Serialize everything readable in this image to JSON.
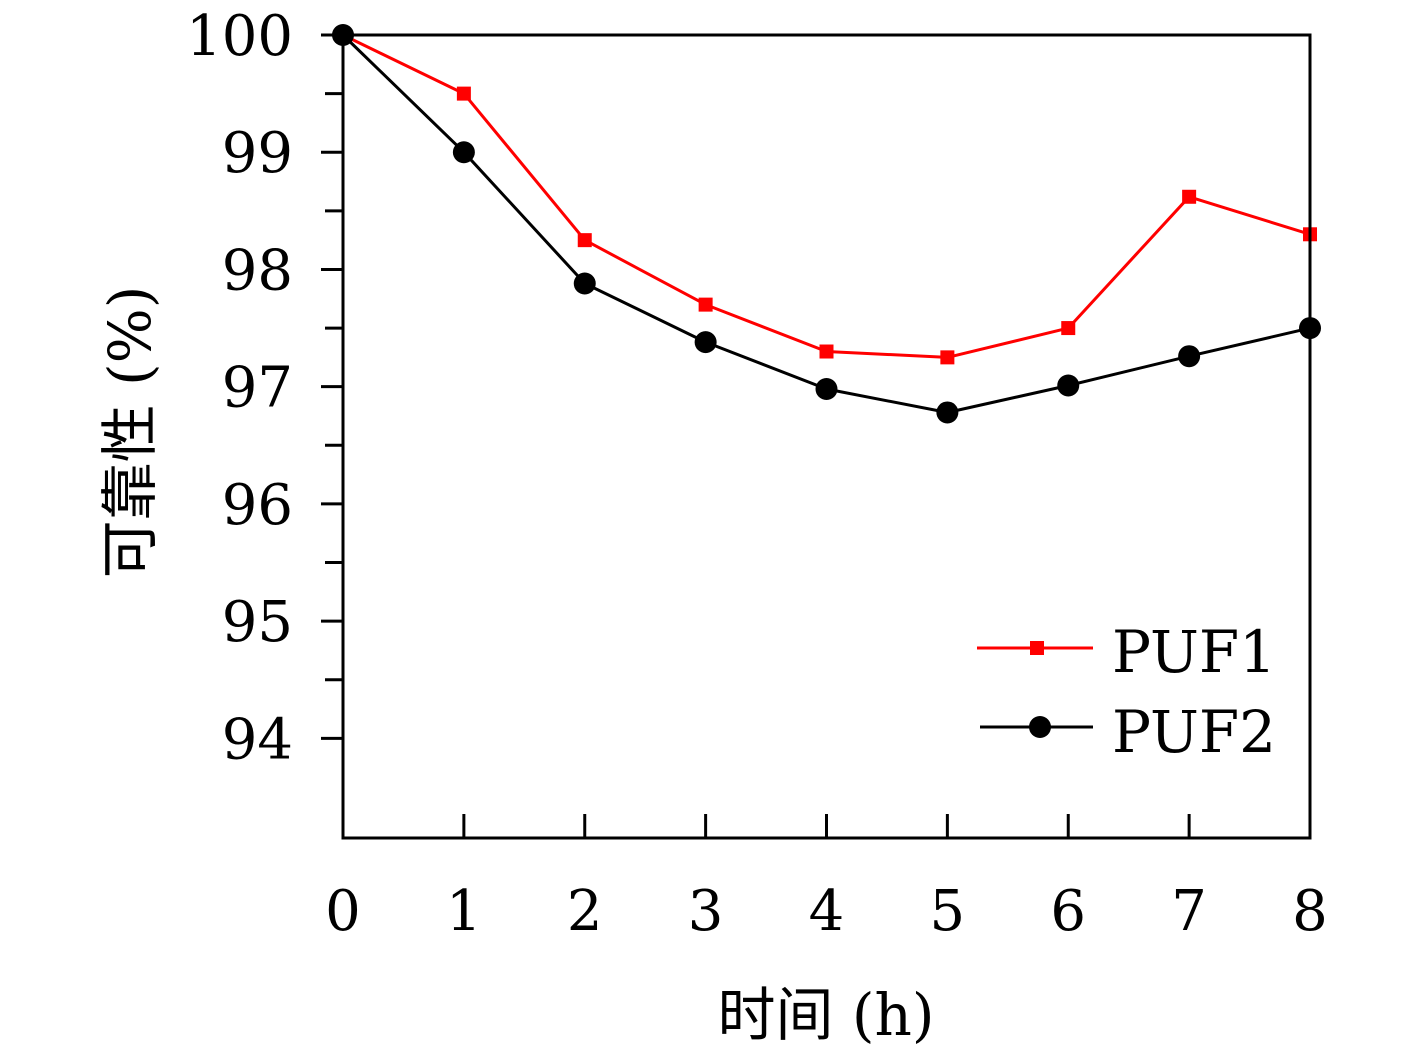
{
  "chart_data": {
    "type": "line",
    "xlabel": "时间 (h)",
    "ylabel": "可靠性 (%)",
    "x": [
      0,
      1,
      2,
      3,
      4,
      5,
      6,
      7,
      8
    ],
    "xlim": [
      0,
      8
    ],
    "ylim": [
      93.15,
      100
    ],
    "x_ticks": [
      "0",
      "1",
      "2",
      "3",
      "4",
      "5",
      "6",
      "7",
      "8"
    ],
    "y_ticks": [
      "94",
      "95",
      "96",
      "97",
      "98",
      "99",
      "100"
    ],
    "y_tick_values": [
      94,
      95,
      96,
      97,
      98,
      99,
      100
    ],
    "y_minor_ticks": [
      94.5,
      95.5,
      96.5,
      97.5,
      98.5,
      99.5
    ],
    "grid": false,
    "legend_position": "bottom-right",
    "series": [
      {
        "name": "PUF1",
        "color": "#ff0000",
        "marker": "square",
        "values": [
          100,
          99.5,
          98.25,
          97.7,
          97.3,
          97.25,
          97.5,
          98.62,
          98.3
        ]
      },
      {
        "name": "PUF2",
        "color": "#000000",
        "marker": "circle",
        "values": [
          100,
          99.0,
          97.88,
          97.38,
          96.98,
          96.78,
          97.01,
          97.26,
          97.5
        ]
      }
    ]
  }
}
